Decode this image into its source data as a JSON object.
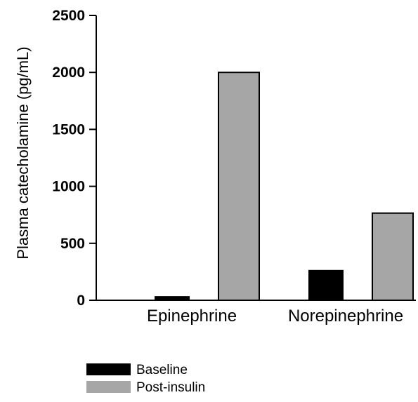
{
  "chart_data": {
    "type": "bar",
    "title": "",
    "xlabel": "",
    "ylabel": "Plasma catecholamine (pg/mL)",
    "ylim": [
      0,
      2500
    ],
    "yticks": [
      "0",
      "500",
      "1000",
      "1500",
      "2000",
      "2500"
    ],
    "categories": [
      "Epinephrine",
      "Norepinephrine"
    ],
    "series": [
      {
        "name": "Baseline",
        "values": [
          30,
          260
        ],
        "color": "#000000"
      },
      {
        "name": "Post-insulin",
        "values": [
          2000,
          765
        ],
        "color": "#a6a6a6"
      }
    ],
    "grid": false,
    "legend_position": "bottom-left"
  }
}
